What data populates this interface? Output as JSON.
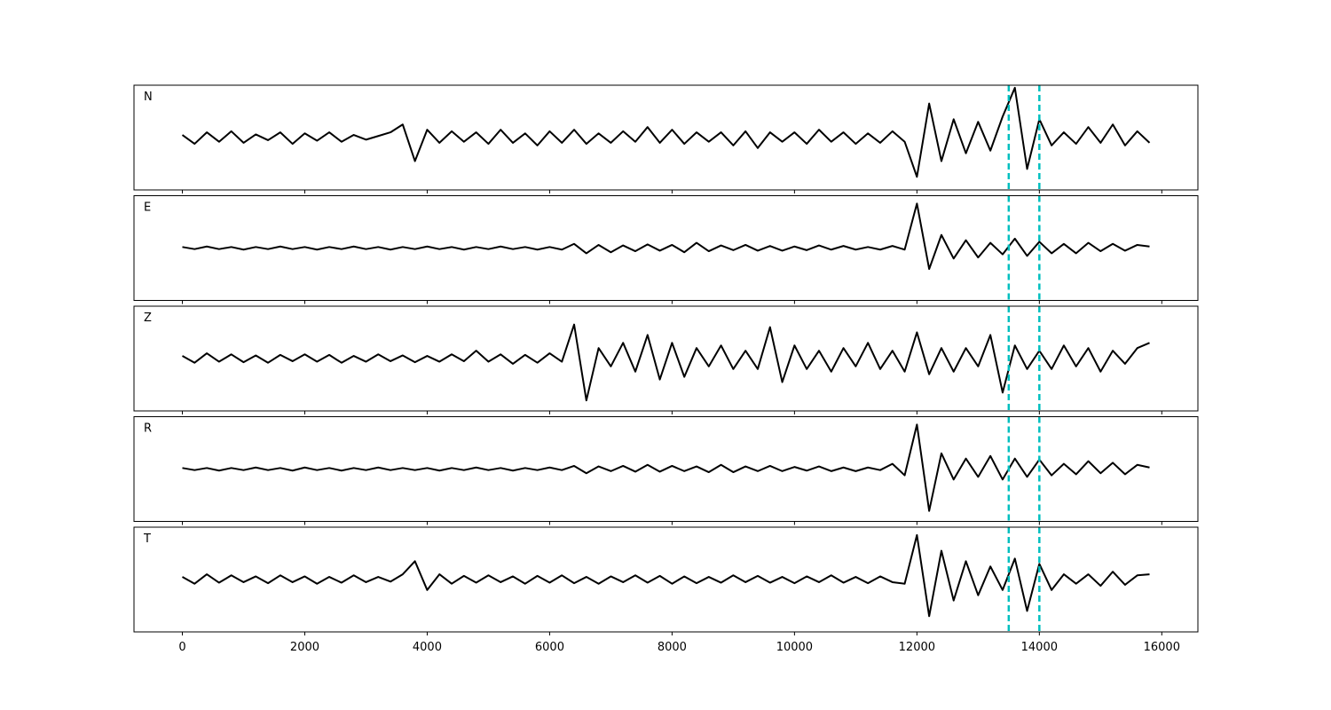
{
  "chart_data": [
    {
      "type": "line",
      "label": "N",
      "color": "#000000",
      "xlim": [
        -790,
        16590
      ],
      "ylim": [
        -1,
        1
      ],
      "xticks": [
        0,
        2000,
        4000,
        6000,
        8000,
        10000,
        12000,
        14000,
        16000
      ],
      "show_xtick_labels": false,
      "vlines": {
        "x": [
          13500,
          14000
        ],
        "color": "#00bfbf"
      },
      "x": [
        0,
        200,
        400,
        600,
        800,
        1000,
        1200,
        1400,
        1600,
        1800,
        2000,
        2200,
        2400,
        2600,
        2800,
        3000,
        3200,
        3400,
        3600,
        3800,
        4000,
        4200,
        4400,
        4600,
        4800,
        5000,
        5200,
        5400,
        5600,
        5800,
        6000,
        6200,
        6400,
        6600,
        6800,
        7000,
        7200,
        7400,
        7600,
        7800,
        8000,
        8200,
        8400,
        8600,
        8800,
        9000,
        9200,
        9400,
        9600,
        9800,
        10000,
        10200,
        10400,
        10600,
        10800,
        11000,
        11200,
        11400,
        11600,
        11800,
        12000,
        12200,
        12400,
        12600,
        12800,
        13000,
        13200,
        13400,
        13600,
        13800,
        14000,
        14200,
        14400,
        14600,
        14800,
        15000,
        15200,
        15400,
        15600,
        15800
      ],
      "values": [
        0.05,
        -0.12,
        0.1,
        -0.08,
        0.12,
        -0.1,
        0.06,
        -0.05,
        0.1,
        -0.12,
        0.08,
        -0.06,
        0.1,
        -0.08,
        0.05,
        -0.04,
        0.03,
        0.1,
        0.25,
        -0.45,
        0.15,
        -0.1,
        0.12,
        -0.08,
        0.1,
        -0.12,
        0.15,
        -0.1,
        0.08,
        -0.15,
        0.12,
        -0.1,
        0.15,
        -0.12,
        0.08,
        -0.1,
        0.12,
        -0.08,
        0.2,
        -0.1,
        0.15,
        -0.12,
        0.1,
        -0.08,
        0.1,
        -0.15,
        0.12,
        -0.2,
        0.1,
        -0.08,
        0.1,
        -0.12,
        0.15,
        -0.08,
        0.1,
        -0.12,
        0.08,
        -0.1,
        0.12,
        -0.08,
        -0.75,
        0.65,
        -0.45,
        0.35,
        -0.3,
        0.3,
        -0.25,
        0.4,
        0.95,
        -0.6,
        0.35,
        -0.15,
        0.1,
        -0.12,
        0.2,
        -0.1,
        0.25,
        -0.15,
        0.12,
        -0.1
      ]
    },
    {
      "type": "line",
      "label": "E",
      "color": "#000000",
      "xlim": [
        -790,
        16590
      ],
      "ylim": [
        -1,
        1
      ],
      "xticks": [
        0,
        2000,
        4000,
        6000,
        8000,
        10000,
        12000,
        14000,
        16000
      ],
      "show_xtick_labels": false,
      "vlines": {
        "x": [
          13500,
          14000
        ],
        "color": "#00bfbf"
      },
      "x": [
        0,
        200,
        400,
        600,
        800,
        1000,
        1200,
        1400,
        1600,
        1800,
        2000,
        2200,
        2400,
        2600,
        2800,
        3000,
        3200,
        3400,
        3600,
        3800,
        4000,
        4200,
        4400,
        4600,
        4800,
        5000,
        5200,
        5400,
        5600,
        5800,
        6000,
        6200,
        6400,
        6600,
        6800,
        7000,
        7200,
        7400,
        7600,
        7800,
        8000,
        8200,
        8400,
        8600,
        8800,
        9000,
        9200,
        9400,
        9600,
        9800,
        10000,
        10200,
        10400,
        10600,
        10800,
        11000,
        11200,
        11400,
        11600,
        11800,
        12000,
        12200,
        12400,
        12600,
        12800,
        13000,
        13200,
        13400,
        13600,
        13800,
        14000,
        14200,
        14400,
        14600,
        14800,
        15000,
        15200,
        15400,
        15600,
        15800
      ],
      "values": [
        0.02,
        -0.02,
        0.03,
        -0.02,
        0.02,
        -0.03,
        0.02,
        -0.02,
        0.03,
        -0.02,
        0.02,
        -0.03,
        0.02,
        -0.02,
        0.03,
        -0.02,
        0.02,
        -0.03,
        0.02,
        -0.02,
        0.03,
        -0.02,
        0.02,
        -0.03,
        0.02,
        -0.02,
        0.03,
        -0.02,
        0.02,
        -0.03,
        0.02,
        -0.03,
        0.08,
        -0.1,
        0.06,
        -0.08,
        0.05,
        -0.06,
        0.07,
        -0.05,
        0.06,
        -0.08,
        0.1,
        -0.06,
        0.05,
        -0.04,
        0.06,
        -0.05,
        0.04,
        -0.05,
        0.03,
        -0.04,
        0.05,
        -0.03,
        0.04,
        -0.03,
        0.02,
        -0.03,
        0.04,
        -0.03,
        0.85,
        -0.4,
        0.25,
        -0.2,
        0.15,
        -0.18,
        0.1,
        -0.12,
        0.18,
        -0.15,
        0.12,
        -0.1,
        0.08,
        -0.1,
        0.1,
        -0.06,
        0.08,
        -0.05,
        0.06,
        0.03
      ]
    },
    {
      "type": "line",
      "label": "Z",
      "color": "#000000",
      "xlim": [
        -790,
        16590
      ],
      "ylim": [
        -1,
        1
      ],
      "xticks": [
        0,
        2000,
        4000,
        6000,
        8000,
        10000,
        12000,
        14000,
        16000
      ],
      "show_xtick_labels": false,
      "vlines": {
        "x": [
          13500,
          14000
        ],
        "color": "#00bfbf"
      },
      "x": [
        0,
        200,
        400,
        600,
        800,
        1000,
        1200,
        1400,
        1600,
        1800,
        2000,
        2200,
        2400,
        2600,
        2800,
        3000,
        3200,
        3400,
        3600,
        3800,
        4000,
        4200,
        4400,
        4600,
        4800,
        5000,
        5200,
        5400,
        5600,
        5800,
        6000,
        6200,
        6400,
        6600,
        6800,
        7000,
        7200,
        7400,
        7600,
        7800,
        8000,
        8200,
        8400,
        8600,
        8800,
        9000,
        9200,
        9400,
        9600,
        9800,
        10000,
        10200,
        10400,
        10600,
        10800,
        11000,
        11200,
        11400,
        11600,
        11800,
        12000,
        12200,
        12400,
        12600,
        12800,
        13000,
        13200,
        13400,
        13600,
        13800,
        14000,
        14200,
        14400,
        14600,
        14800,
        15000,
        15200,
        15400,
        15600,
        15800
      ],
      "values": [
        0.05,
        -0.08,
        0.1,
        -0.06,
        0.08,
        -0.07,
        0.06,
        -0.08,
        0.07,
        -0.05,
        0.08,
        -0.06,
        0.07,
        -0.08,
        0.05,
        -0.06,
        0.08,
        -0.05,
        0.06,
        -0.07,
        0.05,
        -0.06,
        0.08,
        -0.05,
        0.15,
        -0.06,
        0.08,
        -0.1,
        0.07,
        -0.08,
        0.1,
        -0.06,
        0.65,
        -0.8,
        0.2,
        -0.15,
        0.3,
        -0.25,
        0.45,
        -0.4,
        0.3,
        -0.35,
        0.2,
        -0.15,
        0.25,
        -0.2,
        0.15,
        -0.2,
        0.6,
        -0.45,
        0.25,
        -0.2,
        0.15,
        -0.25,
        0.2,
        -0.15,
        0.3,
        -0.2,
        0.15,
        -0.25,
        0.5,
        -0.3,
        0.2,
        -0.25,
        0.2,
        -0.15,
        0.45,
        -0.65,
        0.25,
        -0.2,
        0.15,
        -0.2,
        0.25,
        -0.15,
        0.2,
        -0.25,
        0.15,
        -0.1,
        0.2,
        0.3
      ]
    },
    {
      "type": "line",
      "label": "R",
      "color": "#000000",
      "xlim": [
        -790,
        16590
      ],
      "ylim": [
        -1,
        1
      ],
      "xticks": [
        0,
        2000,
        4000,
        6000,
        8000,
        10000,
        12000,
        14000,
        16000
      ],
      "show_xtick_labels": false,
      "vlines": {
        "x": [
          13500,
          14000
        ],
        "color": "#00bfbf"
      },
      "x": [
        0,
        200,
        400,
        600,
        800,
        1000,
        1200,
        1400,
        1600,
        1800,
        2000,
        2200,
        2400,
        2600,
        2800,
        3000,
        3200,
        3400,
        3600,
        3800,
        4000,
        4200,
        4400,
        4600,
        4800,
        5000,
        5200,
        5400,
        5600,
        5800,
        6000,
        6200,
        6400,
        6600,
        6800,
        7000,
        7200,
        7400,
        7600,
        7800,
        8000,
        8200,
        8400,
        8600,
        8800,
        9000,
        9200,
        9400,
        9600,
        9800,
        10000,
        10200,
        10400,
        10600,
        10800,
        11000,
        11200,
        11400,
        11600,
        11800,
        12000,
        12200,
        12400,
        12600,
        12800,
        13000,
        13200,
        13400,
        13600,
        13800,
        14000,
        14200,
        14400,
        14600,
        14800,
        15000,
        15200,
        15400,
        15600,
        15800
      ],
      "values": [
        0.02,
        -0.02,
        0.02,
        -0.03,
        0.02,
        -0.02,
        0.03,
        -0.02,
        0.02,
        -0.03,
        0.03,
        -0.02,
        0.02,
        -0.03,
        0.02,
        -0.02,
        0.03,
        -0.02,
        0.02,
        -0.02,
        0.02,
        -0.03,
        0.02,
        -0.02,
        0.03,
        -0.02,
        0.02,
        -0.03,
        0.02,
        -0.02,
        0.03,
        -0.02,
        0.06,
        -0.08,
        0.05,
        -0.04,
        0.06,
        -0.05,
        0.08,
        -0.05,
        0.06,
        -0.04,
        0.05,
        -0.06,
        0.08,
        -0.06,
        0.05,
        -0.04,
        0.06,
        -0.04,
        0.04,
        -0.03,
        0.05,
        -0.04,
        0.03,
        -0.04,
        0.03,
        -0.02,
        0.1,
        -0.12,
        0.85,
        -0.8,
        0.3,
        -0.2,
        0.2,
        -0.15,
        0.25,
        -0.2,
        0.2,
        -0.15,
        0.18,
        -0.12,
        0.1,
        -0.1,
        0.15,
        -0.08,
        0.12,
        -0.1,
        0.08,
        0.03
      ]
    },
    {
      "type": "line",
      "label": "T",
      "color": "#000000",
      "xlim": [
        -790,
        16590
      ],
      "ylim": [
        -1,
        1
      ],
      "xticks": [
        0,
        2000,
        4000,
        6000,
        8000,
        10000,
        12000,
        14000,
        16000
      ],
      "show_xtick_labels": true,
      "vlines": {
        "x": [
          13500,
          14000
        ],
        "color": "#00bfbf"
      },
      "x": [
        0,
        200,
        400,
        600,
        800,
        1000,
        1200,
        1400,
        1600,
        1800,
        2000,
        2200,
        2400,
        2600,
        2800,
        3000,
        3200,
        3400,
        3600,
        3800,
        4000,
        4200,
        4400,
        4600,
        4800,
        5000,
        5200,
        5400,
        5600,
        5800,
        6000,
        6200,
        6400,
        6600,
        6800,
        7000,
        7200,
        7400,
        7600,
        7800,
        8000,
        8200,
        8400,
        8600,
        8800,
        9000,
        9200,
        9400,
        9600,
        9800,
        10000,
        10200,
        10400,
        10600,
        10800,
        11000,
        11200,
        11400,
        11600,
        11800,
        12000,
        12200,
        12400,
        12600,
        12800,
        13000,
        13200,
        13400,
        13600,
        13800,
        14000,
        14200,
        14400,
        14600,
        14800,
        15000,
        15200,
        15400,
        15600,
        15800
      ],
      "values": [
        0.05,
        -0.08,
        0.1,
        -0.06,
        0.08,
        -0.05,
        0.06,
        -0.07,
        0.08,
        -0.05,
        0.06,
        -0.08,
        0.05,
        -0.06,
        0.08,
        -0.05,
        0.05,
        -0.04,
        0.1,
        0.35,
        -0.2,
        0.1,
        -0.08,
        0.07,
        -0.06,
        0.08,
        -0.05,
        0.06,
        -0.08,
        0.07,
        -0.06,
        0.08,
        -0.07,
        0.05,
        -0.08,
        0.06,
        -0.05,
        0.08,
        -0.06,
        0.07,
        -0.08,
        0.06,
        -0.07,
        0.05,
        -0.06,
        0.08,
        -0.05,
        0.07,
        -0.06,
        0.05,
        -0.07,
        0.06,
        -0.05,
        0.08,
        -0.06,
        0.05,
        -0.07,
        0.06,
        -0.05,
        -0.08,
        0.85,
        -0.7,
        0.55,
        -0.4,
        0.35,
        -0.3,
        0.25,
        -0.2,
        0.4,
        -0.6,
        0.3,
        -0.2,
        0.1,
        -0.08,
        0.1,
        -0.12,
        0.15,
        -0.1,
        0.08,
        0.1
      ]
    }
  ]
}
